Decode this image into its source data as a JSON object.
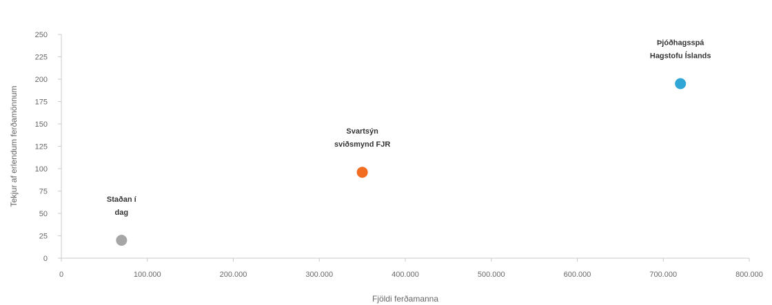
{
  "chart_data": {
    "type": "scatter",
    "title": "",
    "xlabel": "Fjöldi ferðamanna",
    "ylabel": "Tekjur af erlendum ferðamönnum",
    "xlim": [
      0,
      800000
    ],
    "ylim": [
      0,
      250
    ],
    "x_ticks": [
      0,
      100000,
      200000,
      300000,
      400000,
      500000,
      600000,
      700000,
      800000
    ],
    "x_tick_labels": [
      "0",
      "100.000",
      "200.000",
      "300.000",
      "400.000",
      "500.000",
      "600.000",
      "700.000",
      "800.000"
    ],
    "y_ticks": [
      0,
      25,
      50,
      75,
      100,
      125,
      150,
      175,
      200,
      225,
      250
    ],
    "y_tick_labels": [
      "0",
      "25",
      "50",
      "75",
      "100",
      "125",
      "150",
      "175",
      "200",
      "225",
      "250"
    ],
    "grid": false,
    "points": [
      {
        "x": 70000,
        "y": 20,
        "label": [
          "Staðan í",
          "dag"
        ],
        "color": "#a6a6a6"
      },
      {
        "x": 350000,
        "y": 96,
        "label": [
          "Svartsýn",
          "sviðsmynd FJR"
        ],
        "color": "#f26c21"
      },
      {
        "x": 720000,
        "y": 195,
        "label": [
          "Þjóðhagsspá",
          "Hagstofu Íslands"
        ],
        "color": "#2fa6d6"
      }
    ]
  }
}
